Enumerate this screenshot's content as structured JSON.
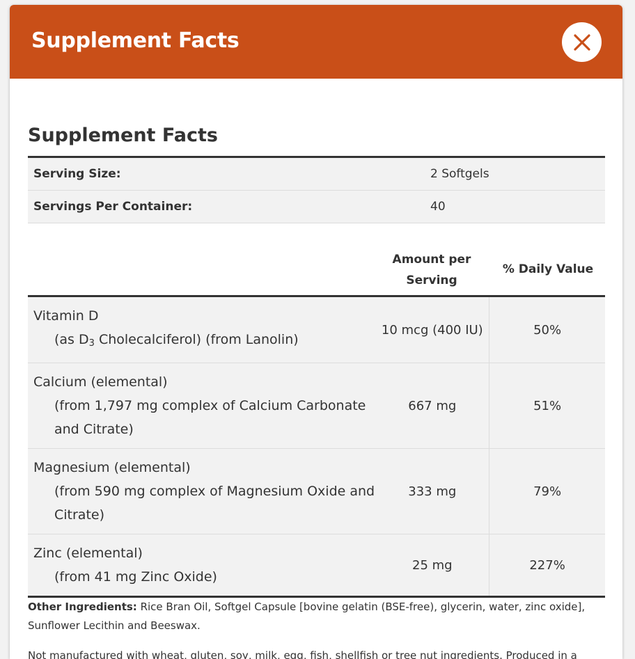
{
  "modal": {
    "title": "Supplement Facts",
    "close_icon": "close-x-icon",
    "accent_color": "#c94f18"
  },
  "section_title": "Supplement Facts",
  "serving": {
    "size_label": "Serving Size:",
    "size_value": "2 Softgels",
    "per_container_label": "Servings Per Container:",
    "per_container_value": "40"
  },
  "columns": {
    "amount": "Amount per Serving",
    "daily_value": "% Daily Value"
  },
  "nutrients": [
    {
      "name": "Vitamin D",
      "detail_prefix": "(as D",
      "detail_sub": "3",
      "detail_suffix": " Cholecalciferol) (from Lanolin)",
      "amount": "10 mcg (400 IU)",
      "dv": "50%"
    },
    {
      "name": "Calcium (elemental)",
      "detail": "(from 1,797 mg complex of Calcium Carbonate and Citrate)",
      "amount": "667 mg",
      "dv": "51%"
    },
    {
      "name": "Magnesium (elemental)",
      "detail": "(from 590 mg complex of Magnesium Oxide and Citrate)",
      "amount": "333 mg",
      "dv": "79%"
    },
    {
      "name": "Zinc (elemental)",
      "detail": "(from 41 mg Zinc Oxide)",
      "amount": "25 mg",
      "dv": "227%"
    }
  ],
  "other_ingredients": {
    "label": "Other Ingredients:",
    "text": " Rice Bran Oil, Softgel Capsule [bovine gelatin (BSE-free), glycerin, water, zinc oxide], Sunflower Lecithin and Beeswax."
  },
  "notice": "Not manufactured with wheat, gluten, soy, milk, egg, fish, shellfish or tree nut ingredients. Produced in a"
}
